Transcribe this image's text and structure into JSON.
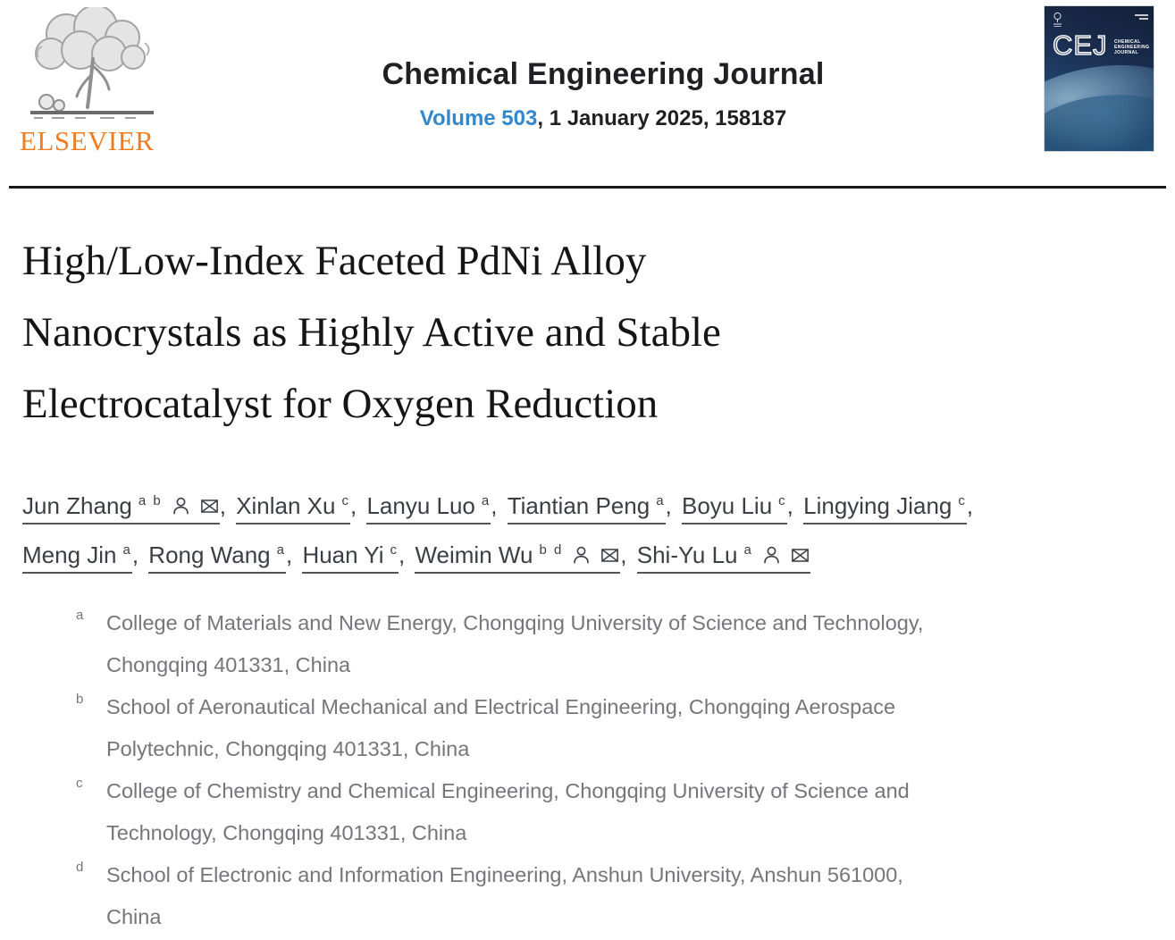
{
  "header": {
    "publisher_wordmark": "ELSEVIER",
    "journal_title": "Chemical Engineering Journal",
    "volume_link": "Volume 503",
    "issue_info": ", 1 January 2025, 158187",
    "cover": {
      "abbrev": "CEJ",
      "subtitle_lines": [
        "CHEMICAL",
        "ENGINEERING",
        "JOURNAL"
      ]
    }
  },
  "article": {
    "title": "High/Low-Index Faceted PdNi Alloy Nanocrystals as Highly Active and Stable Electrocatalyst for Oxygen Reduction",
    "title_lines": [
      "High/Low-Index Faceted PdNi Alloy",
      "Nanocrystals as Highly Active and Stable",
      "Electrocatalyst for Oxygen Reduction"
    ],
    "authors_rows": [
      [
        {
          "name": "Jun Zhang",
          "sups": "a b",
          "has_profile": true,
          "has_email": true
        },
        {
          "name": "Xinlan Xu",
          "sups": "c",
          "has_profile": false,
          "has_email": false
        },
        {
          "name": "Lanyu Luo",
          "sups": "a",
          "has_profile": false,
          "has_email": false
        },
        {
          "name": "Tiantian Peng",
          "sups": "a",
          "has_profile": false,
          "has_email": false
        },
        {
          "name": "Boyu Liu",
          "sups": "c",
          "has_profile": false,
          "has_email": false
        },
        {
          "name": "Lingying Jiang",
          "sups": "c",
          "has_profile": false,
          "has_email": false
        }
      ],
      [
        {
          "name": "Meng Jin",
          "sups": "a",
          "has_profile": false,
          "has_email": false
        },
        {
          "name": "Rong Wang",
          "sups": "a",
          "has_profile": false,
          "has_email": false
        },
        {
          "name": "Huan Yi",
          "sups": "c",
          "has_profile": false,
          "has_email": false
        },
        {
          "name": "Weimin Wu",
          "sups": "b d",
          "has_profile": true,
          "has_email": true
        },
        {
          "name": "Shi-Yu Lu",
          "sups": "a",
          "has_profile": true,
          "has_email": true
        }
      ]
    ],
    "affiliations": [
      {
        "label": "a",
        "lines": [
          "College of Materials and New Energy, Chongqing University of Science and Technology,",
          "Chongqing 401331, China"
        ]
      },
      {
        "label": "b",
        "lines": [
          "School of Aeronautical Mechanical and Electrical Engineering, Chongqing Aerospace",
          "Polytechnic, Chongqing 401331, China"
        ]
      },
      {
        "label": "c",
        "lines": [
          "College of Chemistry and Chemical Engineering, Chongqing University of Science and",
          "Technology, Chongqing 401331, China"
        ]
      },
      {
        "label": "d",
        "lines": [
          "School of Electronic and Information Engineering, Anshun University, Anshun 561000,",
          "China"
        ]
      }
    ]
  },
  "colors": {
    "link_blue": "#3287cd",
    "elsevier_orange": "#ef7d1f",
    "cover_navy": "#16233d",
    "rule_black": "#191919",
    "author_text": "#3b3e44",
    "affiliation_gray": "#75757b"
  }
}
